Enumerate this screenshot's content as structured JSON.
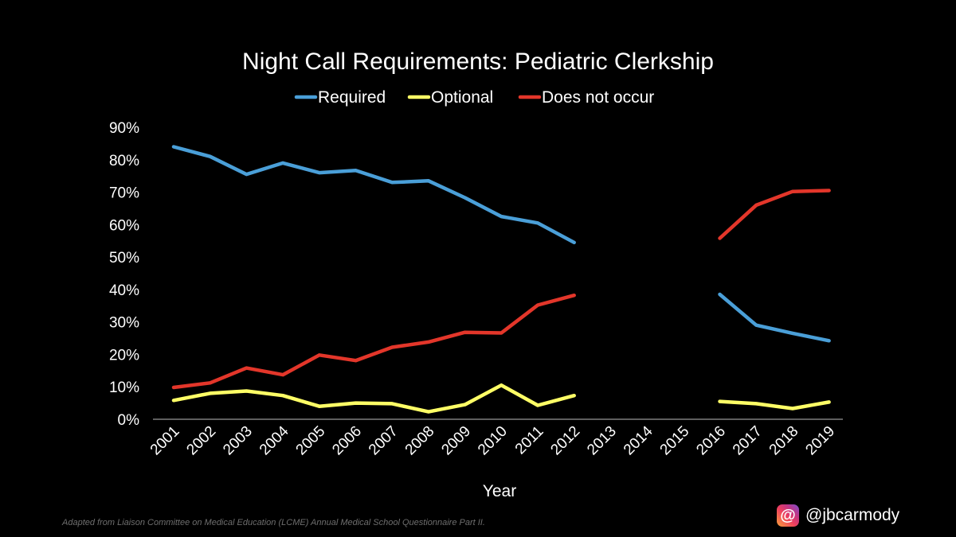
{
  "chart_data": {
    "type": "line",
    "title": "Night Call Requirements: Pediatric Clerkship",
    "xlabel": "Year",
    "ylabel": "",
    "categories": [
      "2001",
      "2002",
      "2003",
      "2004",
      "2005",
      "2006",
      "2007",
      "2008",
      "2009",
      "2010",
      "2011",
      "2012",
      "2013",
      "2014",
      "2015",
      "2016",
      "2017",
      "2018",
      "2019"
    ],
    "ylim": [
      0,
      90
    ],
    "yticks": [
      "0%",
      "10%",
      "20%",
      "30%",
      "40%",
      "50%",
      "60%",
      "70%",
      "80%",
      "90%"
    ],
    "grid": false,
    "legend_position": "top",
    "series": [
      {
        "name": "Required",
        "color": "#4a9fd8",
        "values": [
          84,
          81,
          75.5,
          79,
          76,
          76.7,
          73,
          73.5,
          68.3,
          62.5,
          60.5,
          54.5,
          null,
          null,
          null,
          38.5,
          29,
          26.5,
          24.2
        ]
      },
      {
        "name": "Optional",
        "color": "#ffff66",
        "values": [
          5.8,
          8,
          8.7,
          7.3,
          4,
          5,
          4.8,
          2.3,
          4.5,
          10.5,
          4.3,
          7.3,
          null,
          null,
          null,
          5.5,
          4.8,
          3.3,
          5.3
        ]
      },
      {
        "name": "Does not occur",
        "color": "#e3362a",
        "values": [
          9.8,
          11.2,
          15.8,
          13.7,
          19.8,
          18.1,
          22.2,
          23.8,
          26.8,
          26.6,
          35.2,
          38.2,
          null,
          null,
          null,
          55.8,
          66,
          70.2,
          70.5
        ]
      }
    ]
  },
  "footer": {
    "source": "Adapted from Liaison Committee on Medical Education (LCME) Annual Medical School Questionnaire Part II.",
    "handle": "@jbcarmody",
    "handle_icon": "threads-icon"
  }
}
